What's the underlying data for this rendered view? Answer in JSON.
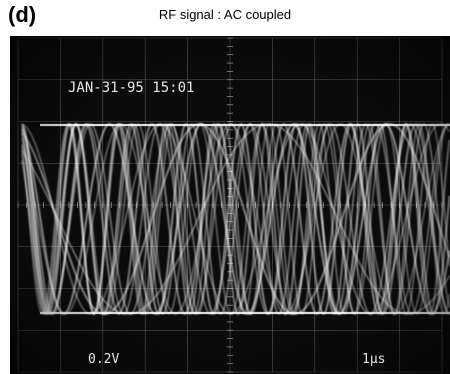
{
  "figure": {
    "panel_label": "(d)",
    "caption": "RF signal : AC coupled"
  },
  "oscilloscope": {
    "timestamp": "JAN-31-95 15:01",
    "vertical_scale": "0.2V",
    "time_scale": "1µs",
    "trace_color": "#f2f2f2",
    "screen_color": "#0b0b0b"
  }
}
